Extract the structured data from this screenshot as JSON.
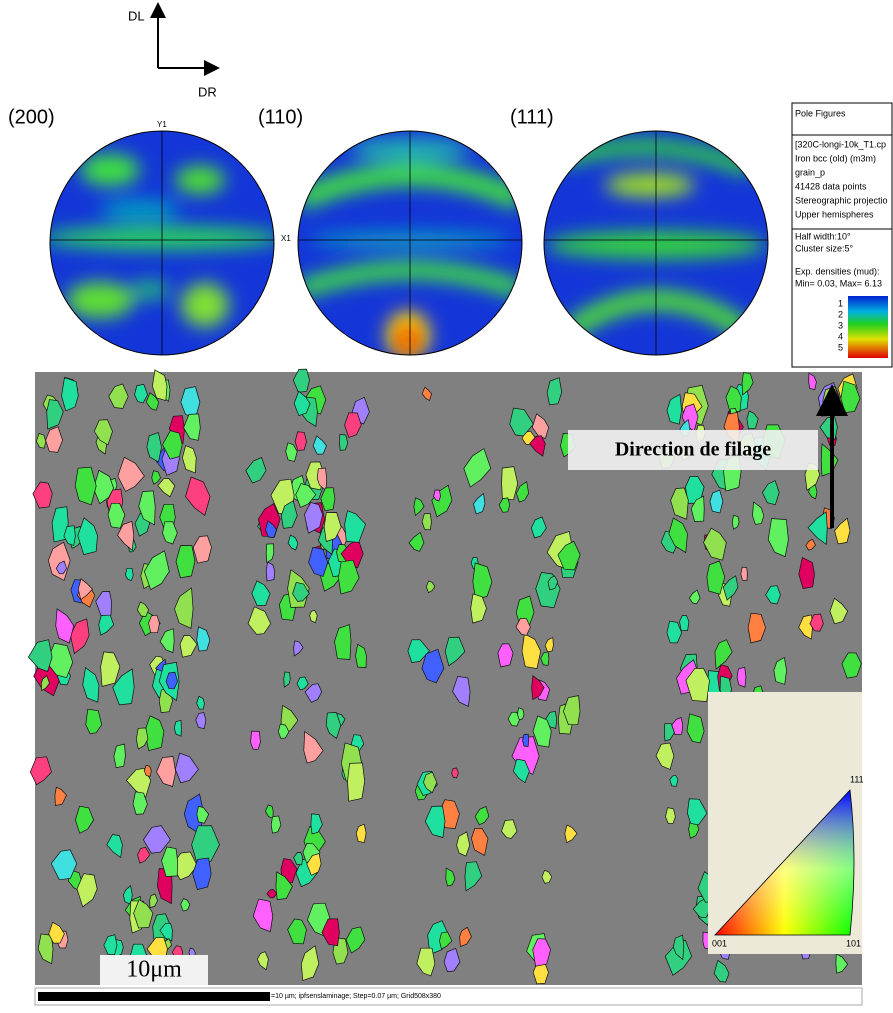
{
  "axes": {
    "up": "DL",
    "right": "DR"
  },
  "pole_figures": [
    {
      "label": "(200)",
      "y_axis": "Y1",
      "x_axis": "X1"
    },
    {
      "label": "(110)"
    },
    {
      "label": "(111)"
    }
  ],
  "info_panel": {
    "title": "Pole Figures",
    "lines": [
      "[320C-longi-10k_T1.cp",
      "Iron bcc (old) (m3m)",
      "grain_p",
      "41428 data points",
      "Stereographic projectio",
      "Upper hemispheres"
    ],
    "settings": [
      "Half width:10°",
      "Cluster size:5°"
    ],
    "density_title": "Exp. densities (mud):",
    "density_range": "Min= 0.03, Max= 6.13",
    "scale": [
      1,
      2,
      3,
      4,
      5
    ]
  },
  "map": {
    "direction_label": "Direction de filage",
    "scale_label": "10μm",
    "ipf_corners": [
      "111",
      "001",
      "101"
    ],
    "footer": "=10 µm; ipfsenslaminage; Step=0.07 µm; Grid508x380"
  }
}
